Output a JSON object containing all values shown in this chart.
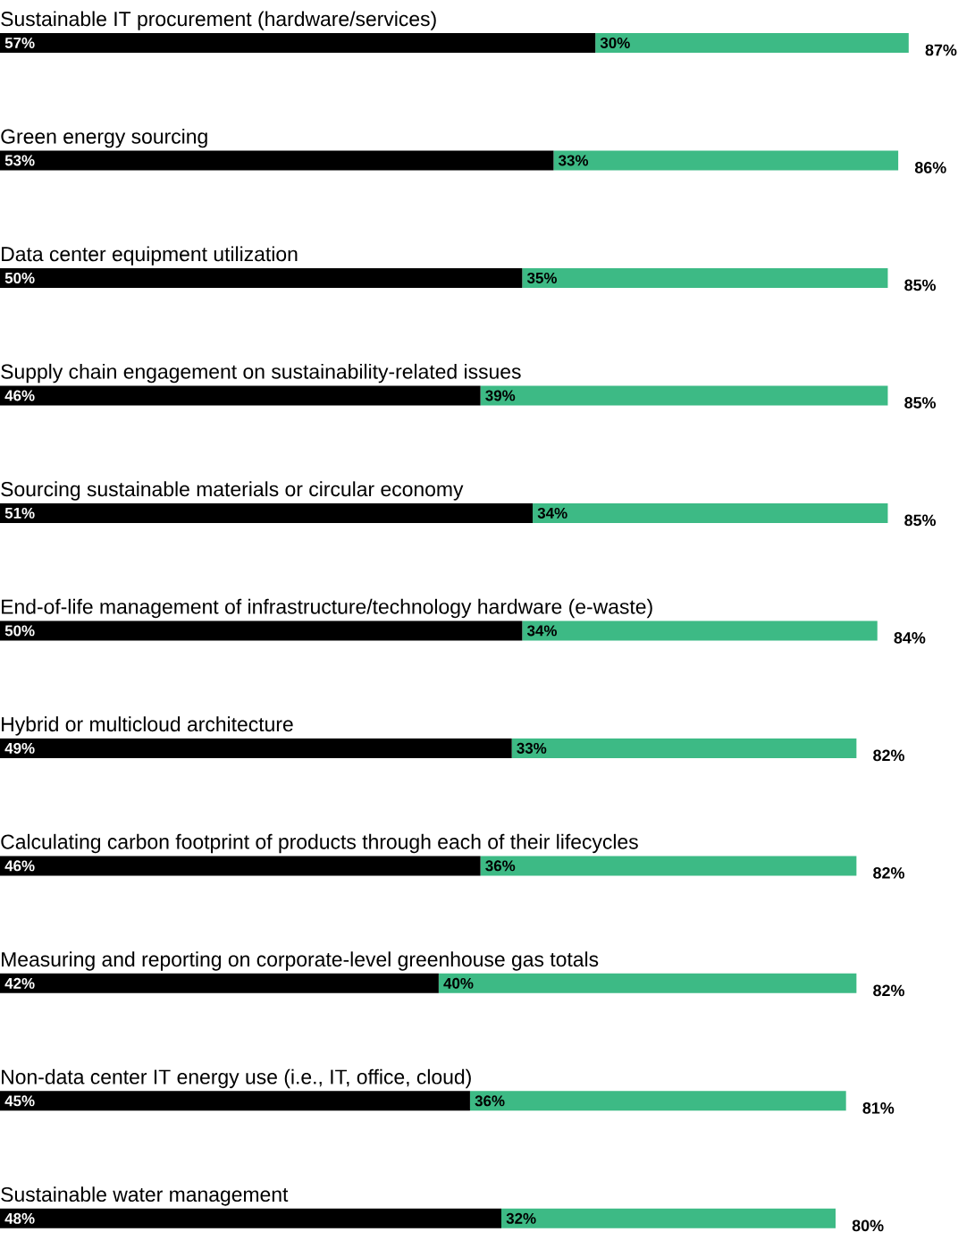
{
  "chart_data": {
    "type": "bar",
    "orientation": "horizontal",
    "stacked": true,
    "categories": [
      "Sustainable IT procurement (hardware/services)",
      "Green energy sourcing",
      "Data center equipment utilization",
      "Supply chain engagement on sustainability-related issues",
      "Sourcing sustainable materials or circular economy",
      "End-of-life management of infrastructure/technology hardware (e-waste)",
      "Hybrid or multicloud architecture",
      "Calculating carbon footprint of products through each of their lifecycles",
      "Measuring and reporting on corporate-level greenhouse gas totals",
      "Non-data center IT energy use (i.e., IT, office, cloud)",
      "Sustainable water management"
    ],
    "series": [
      {
        "color": "#000000",
        "values": [
          57,
          53,
          50,
          46,
          51,
          50,
          49,
          46,
          42,
          45,
          48
        ],
        "value_labels": [
          "57%",
          "53%",
          "50%",
          "46%",
          "51%",
          "50%",
          "49%",
          "46%",
          "42%",
          "45%",
          "48%"
        ]
      },
      {
        "color": "#3dba85",
        "values": [
          30,
          33,
          35,
          39,
          34,
          34,
          33,
          36,
          40,
          36,
          32
        ],
        "value_labels": [
          "30%",
          "33%",
          "35%",
          "39%",
          "34%",
          "34%",
          "33%",
          "36%",
          "40%",
          "36%",
          "32%"
        ]
      }
    ],
    "totals": [
      "87%",
      "86%",
      "85%",
      "85%",
      "85%",
      "84%",
      "82%",
      "82%",
      "82%",
      "81%",
      "80%"
    ]
  }
}
